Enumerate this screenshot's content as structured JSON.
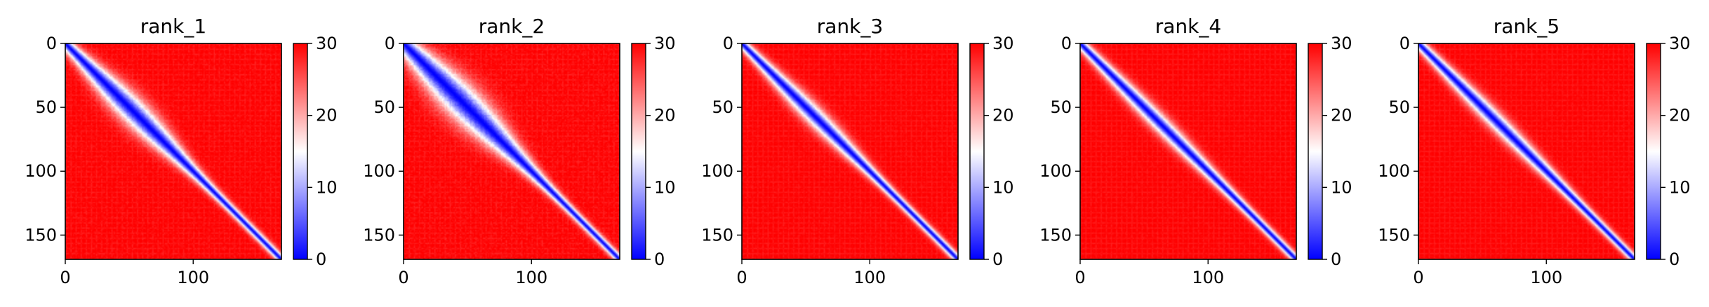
{
  "chart_data": [
    {
      "type": "heatmap",
      "title": "rank_1",
      "x_ticks": [
        "0",
        "100"
      ],
      "x_tick_values": [
        0,
        100
      ],
      "y_ticks": [
        "0",
        "50",
        "100",
        "150"
      ],
      "y_tick_values": [
        0,
        50,
        100,
        150
      ],
      "xlim": [
        0,
        169
      ],
      "ylim": [
        169,
        0
      ],
      "colorbar": {
        "ticks": [
          "0",
          "10",
          "20",
          "30"
        ],
        "tick_values": [
          0,
          10,
          20,
          30
        ],
        "range": [
          0,
          30
        ],
        "colormap": "bwr"
      },
      "band": {
        "min_width": 3,
        "width_scale": 9,
        "width_center": 52,
        "width_spread": 40,
        "noise": 0.6
      }
    },
    {
      "type": "heatmap",
      "title": "rank_2",
      "x_ticks": [
        "0",
        "100"
      ],
      "x_tick_values": [
        0,
        100
      ],
      "y_ticks": [
        "0",
        "50",
        "100",
        "150"
      ],
      "y_tick_values": [
        0,
        50,
        100,
        150
      ],
      "xlim": [
        0,
        169
      ],
      "ylim": [
        169,
        0
      ],
      "colorbar": {
        "ticks": [
          "0",
          "10",
          "20",
          "30"
        ],
        "tick_values": [
          0,
          10,
          20,
          30
        ],
        "range": [
          0,
          30
        ],
        "colormap": "bwr"
      },
      "band": {
        "min_width": 3,
        "width_scale": 13,
        "width_center": 45,
        "width_spread": 45,
        "noise": 0.7
      }
    },
    {
      "type": "heatmap",
      "title": "rank_3",
      "x_ticks": [
        "0",
        "100"
      ],
      "x_tick_values": [
        0,
        100
      ],
      "y_ticks": [
        "0",
        "50",
        "100",
        "150"
      ],
      "y_tick_values": [
        0,
        50,
        100,
        150
      ],
      "xlim": [
        0,
        169
      ],
      "ylim": [
        169,
        0
      ],
      "colorbar": {
        "ticks": [
          "0",
          "10",
          "20",
          "30"
        ],
        "tick_values": [
          0,
          10,
          20,
          30
        ],
        "range": [
          0,
          30
        ],
        "colormap": "bwr"
      },
      "band": {
        "min_width": 3,
        "width_scale": 5,
        "width_center": 55,
        "width_spread": 40,
        "noise": 0.45
      }
    },
    {
      "type": "heatmap",
      "title": "rank_4",
      "x_ticks": [
        "0",
        "100"
      ],
      "x_tick_values": [
        0,
        100
      ],
      "y_ticks": [
        "0",
        "50",
        "100",
        "150"
      ],
      "y_tick_values": [
        0,
        50,
        100,
        150
      ],
      "xlim": [
        0,
        169
      ],
      "ylim": [
        169,
        0
      ],
      "colorbar": {
        "ticks": [
          "0",
          "10",
          "20",
          "30"
        ],
        "tick_values": [
          0,
          10,
          20,
          30
        ],
        "range": [
          0,
          30
        ],
        "colormap": "bwr"
      },
      "band": {
        "min_width": 3,
        "width_scale": 4,
        "width_center": 60,
        "width_spread": 50,
        "noise": 0.4
      }
    },
    {
      "type": "heatmap",
      "title": "rank_5",
      "x_ticks": [
        "0",
        "100"
      ],
      "x_tick_values": [
        0,
        100
      ],
      "y_ticks": [
        "0",
        "50",
        "100",
        "150"
      ],
      "y_tick_values": [
        0,
        50,
        100,
        150
      ],
      "xlim": [
        0,
        169
      ],
      "ylim": [
        169,
        0
      ],
      "colorbar": {
        "ticks": [
          "0",
          "10",
          "20",
          "30"
        ],
        "tick_values": [
          0,
          10,
          20,
          30
        ],
        "range": [
          0,
          30
        ],
        "colormap": "bwr"
      },
      "band": {
        "min_width": 3,
        "width_scale": 4,
        "width_center": 60,
        "width_spread": 50,
        "noise": 0.4
      }
    }
  ]
}
